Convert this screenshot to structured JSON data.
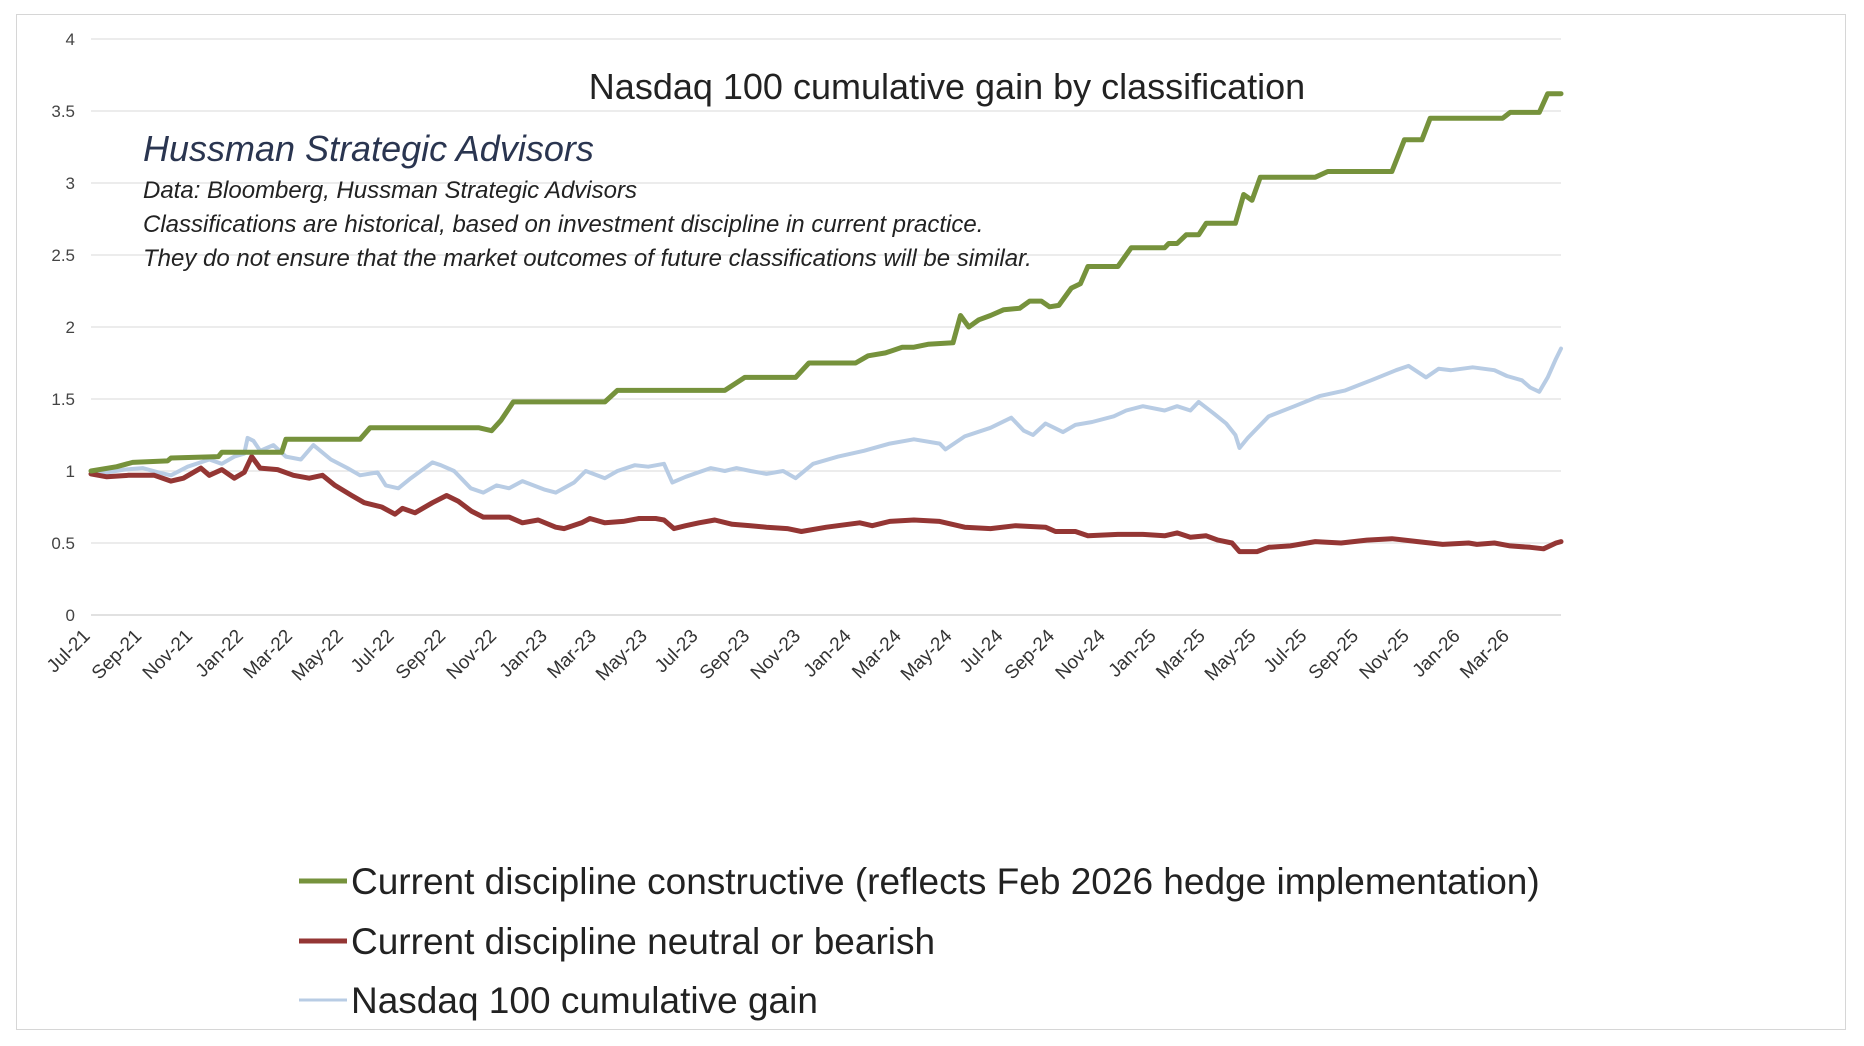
{
  "chart_data": {
    "type": "line",
    "title": "Nasdaq 100  cumulative gain by classification",
    "notes": {
      "brand": "Hussman Strategic Advisors",
      "lines": [
        "Data: Bloomberg, Hussman Strategic Advisors",
        "Classifications are historical,  based on investment discipline in current practice.",
        "They do not ensure that the market outcomes of future classifications will be similar."
      ]
    },
    "y_axis": {
      "range": [
        0,
        4
      ],
      "ticks": [
        "0",
        "0.5",
        "1",
        "1.5",
        "2",
        "2.5",
        "3",
        "3.5",
        "4"
      ],
      "grid": true
    },
    "x_axis": {
      "range": [
        "2021-07",
        "2026-05"
      ],
      "tick_labels": [
        "Jul-21",
        "Sep-21",
        "Nov-21",
        "Jan-22",
        "Mar-22",
        "May-22",
        "Jul-22",
        "Sep-22",
        "Nov-22",
        "Jan-23",
        "Mar-23",
        "May-23",
        "Jul-23",
        "Sep-23",
        "Nov-23",
        "Jan-24",
        "Mar-24",
        "May-24",
        "Jul-24",
        "Sep-24",
        "Nov-24",
        "Jan-25",
        "Mar-25",
        "May-25",
        "Jul-25",
        "Sep-25",
        "Nov-25",
        "Jan-26",
        "Mar-26"
      ]
    },
    "legend_position": "bottom",
    "series": [
      {
        "name": "Current discipline constructive (reflects Feb 2026 hedge implementation)",
        "color": "#76923c",
        "points": [
          [
            "2021-07-01",
            1.0
          ],
          [
            "2021-08-01",
            1.03
          ],
          [
            "2021-08-20",
            1.06
          ],
          [
            "2021-10-01",
            1.07
          ],
          [
            "2021-10-05",
            1.09
          ],
          [
            "2021-12-01",
            1.1
          ],
          [
            "2021-12-05",
            1.13
          ],
          [
            "2022-02-15",
            1.13
          ],
          [
            "2022-02-20",
            1.22
          ],
          [
            "2022-05-20",
            1.22
          ],
          [
            "2022-06-01",
            1.3
          ],
          [
            "2022-10-10",
            1.3
          ],
          [
            "2022-10-25",
            1.28
          ],
          [
            "2022-11-05",
            1.35
          ],
          [
            "2022-11-20",
            1.48
          ],
          [
            "2023-03-10",
            1.48
          ],
          [
            "2023-03-25",
            1.56
          ],
          [
            "2023-08-01",
            1.56
          ],
          [
            "2023-08-25",
            1.65
          ],
          [
            "2023-10-25",
            1.65
          ],
          [
            "2023-11-10",
            1.75
          ],
          [
            "2024-01-05",
            1.75
          ],
          [
            "2024-01-20",
            1.8
          ],
          [
            "2024-02-10",
            1.82
          ],
          [
            "2024-03-01",
            1.86
          ],
          [
            "2024-03-15",
            1.86
          ],
          [
            "2024-04-01",
            1.88
          ],
          [
            "2024-05-01",
            1.89
          ],
          [
            "2024-05-10",
            2.08
          ],
          [
            "2024-05-20",
            2.0
          ],
          [
            "2024-06-01",
            2.05
          ],
          [
            "2024-06-15",
            2.08
          ],
          [
            "2024-07-01",
            2.12
          ],
          [
            "2024-07-20",
            2.13
          ],
          [
            "2024-08-01",
            2.18
          ],
          [
            "2024-08-15",
            2.18
          ],
          [
            "2024-08-25",
            2.14
          ],
          [
            "2024-09-05",
            2.15
          ],
          [
            "2024-09-20",
            2.27
          ],
          [
            "2024-10-01",
            2.3
          ],
          [
            "2024-10-10",
            2.42
          ],
          [
            "2024-11-15",
            2.42
          ],
          [
            "2024-12-01",
            2.55
          ],
          [
            "2025-01-10",
            2.55
          ],
          [
            "2025-01-15",
            2.58
          ],
          [
            "2025-01-25",
            2.58
          ],
          [
            "2025-02-05",
            2.64
          ],
          [
            "2025-02-20",
            2.64
          ],
          [
            "2025-03-01",
            2.72
          ],
          [
            "2025-04-05",
            2.72
          ],
          [
            "2025-04-15",
            2.92
          ],
          [
            "2025-04-25",
            2.88
          ],
          [
            "2025-05-05",
            3.04
          ],
          [
            "2025-07-10",
            3.04
          ],
          [
            "2025-07-25",
            3.08
          ],
          [
            "2025-10-10",
            3.08
          ],
          [
            "2025-10-25",
            3.3
          ],
          [
            "2025-11-15",
            3.3
          ],
          [
            "2025-11-25",
            3.45
          ],
          [
            "2026-02-20",
            3.45
          ],
          [
            "2026-03-01",
            3.49
          ],
          [
            "2026-04-05",
            3.49
          ],
          [
            "2026-04-15",
            3.62
          ],
          [
            "2026-05-01",
            3.62
          ]
        ]
      },
      {
        "name": "Current discipline neutral or bearish",
        "color": "#943634",
        "points": [
          [
            "2021-07-01",
            0.98
          ],
          [
            "2021-07-20",
            0.96
          ],
          [
            "2021-08-15",
            0.97
          ],
          [
            "2021-09-15",
            0.97
          ],
          [
            "2021-10-05",
            0.93
          ],
          [
            "2021-10-20",
            0.95
          ],
          [
            "2021-11-10",
            1.02
          ],
          [
            "2021-11-20",
            0.97
          ],
          [
            "2021-12-05",
            1.01
          ],
          [
            "2021-12-20",
            0.95
          ],
          [
            "2022-01-01",
            0.99
          ],
          [
            "2022-01-10",
            1.1
          ],
          [
            "2022-01-20",
            1.02
          ],
          [
            "2022-02-10",
            1.01
          ],
          [
            "2022-03-01",
            0.97
          ],
          [
            "2022-03-20",
            0.95
          ],
          [
            "2022-04-05",
            0.97
          ],
          [
            "2022-04-20",
            0.9
          ],
          [
            "2022-05-10",
            0.83
          ],
          [
            "2022-05-25",
            0.78
          ],
          [
            "2022-06-15",
            0.75
          ],
          [
            "2022-07-01",
            0.7
          ],
          [
            "2022-07-10",
            0.74
          ],
          [
            "2022-07-25",
            0.71
          ],
          [
            "2022-08-15",
            0.78
          ],
          [
            "2022-09-01",
            0.83
          ],
          [
            "2022-09-15",
            0.79
          ],
          [
            "2022-10-01",
            0.72
          ],
          [
            "2022-10-15",
            0.68
          ],
          [
            "2022-11-15",
            0.68
          ],
          [
            "2022-12-01",
            0.64
          ],
          [
            "2022-12-20",
            0.66
          ],
          [
            "2023-01-10",
            0.61
          ],
          [
            "2023-01-20",
            0.6
          ],
          [
            "2023-02-10",
            0.64
          ],
          [
            "2023-02-20",
            0.67
          ],
          [
            "2023-03-10",
            0.64
          ],
          [
            "2023-04-01",
            0.65
          ],
          [
            "2023-04-20",
            0.67
          ],
          [
            "2023-05-10",
            0.67
          ],
          [
            "2023-05-20",
            0.66
          ],
          [
            "2023-06-01",
            0.6
          ],
          [
            "2023-06-15",
            0.62
          ],
          [
            "2023-07-01",
            0.64
          ],
          [
            "2023-07-20",
            0.66
          ],
          [
            "2023-08-10",
            0.63
          ],
          [
            "2023-09-01",
            0.62
          ],
          [
            "2023-09-20",
            0.61
          ],
          [
            "2023-10-15",
            0.6
          ],
          [
            "2023-11-01",
            0.58
          ],
          [
            "2023-12-01",
            0.61
          ],
          [
            "2024-01-10",
            0.64
          ],
          [
            "2024-01-25",
            0.62
          ],
          [
            "2024-02-15",
            0.65
          ],
          [
            "2024-03-15",
            0.66
          ],
          [
            "2024-04-15",
            0.65
          ],
          [
            "2024-05-15",
            0.61
          ],
          [
            "2024-06-15",
            0.6
          ],
          [
            "2024-07-15",
            0.62
          ],
          [
            "2024-08-20",
            0.61
          ],
          [
            "2024-09-01",
            0.58
          ],
          [
            "2024-09-25",
            0.58
          ],
          [
            "2024-10-10",
            0.55
          ],
          [
            "2024-11-15",
            0.56
          ],
          [
            "2024-12-15",
            0.56
          ],
          [
            "2025-01-10",
            0.55
          ],
          [
            "2025-01-25",
            0.57
          ],
          [
            "2025-02-10",
            0.54
          ],
          [
            "2025-03-01",
            0.55
          ],
          [
            "2025-03-15",
            0.52
          ],
          [
            "2025-04-01",
            0.5
          ],
          [
            "2025-04-10",
            0.44
          ],
          [
            "2025-05-01",
            0.44
          ],
          [
            "2025-05-15",
            0.47
          ],
          [
            "2025-06-10",
            0.48
          ],
          [
            "2025-07-10",
            0.51
          ],
          [
            "2025-08-10",
            0.5
          ],
          [
            "2025-09-10",
            0.52
          ],
          [
            "2025-10-10",
            0.53
          ],
          [
            "2025-11-10",
            0.51
          ],
          [
            "2025-12-10",
            0.49
          ],
          [
            "2026-01-10",
            0.5
          ],
          [
            "2026-01-20",
            0.49
          ],
          [
            "2026-02-10",
            0.5
          ],
          [
            "2026-03-01",
            0.48
          ],
          [
            "2026-03-25",
            0.47
          ],
          [
            "2026-04-10",
            0.46
          ],
          [
            "2026-04-25",
            0.5
          ],
          [
            "2026-05-01",
            0.51
          ]
        ]
      },
      {
        "name": "Nasdaq 100 cumulative gain",
        "color": "#b8cce4",
        "points": [
          [
            "2021-07-01",
            1.0
          ],
          [
            "2021-07-20",
            0.99
          ],
          [
            "2021-08-10",
            1.01
          ],
          [
            "2021-09-01",
            1.02
          ],
          [
            "2021-09-20",
            0.99
          ],
          [
            "2021-10-05",
            0.97
          ],
          [
            "2021-10-25",
            1.03
          ],
          [
            "2021-11-20",
            1.08
          ],
          [
            "2021-12-05",
            1.05
          ],
          [
            "2021-12-20",
            1.1
          ],
          [
            "2022-01-01",
            1.12
          ],
          [
            "2022-01-05",
            1.23
          ],
          [
            "2022-01-12",
            1.21
          ],
          [
            "2022-01-20",
            1.14
          ],
          [
            "2022-02-05",
            1.18
          ],
          [
            "2022-02-20",
            1.1
          ],
          [
            "2022-03-10",
            1.08
          ],
          [
            "2022-03-25",
            1.18
          ],
          [
            "2022-04-15",
            1.08
          ],
          [
            "2022-05-05",
            1.02
          ],
          [
            "2022-05-20",
            0.97
          ],
          [
            "2022-06-10",
            0.99
          ],
          [
            "2022-06-20",
            0.9
          ],
          [
            "2022-07-05",
            0.88
          ],
          [
            "2022-07-20",
            0.95
          ],
          [
            "2022-08-15",
            1.06
          ],
          [
            "2022-08-25",
            1.04
          ],
          [
            "2022-09-10",
            1.0
          ],
          [
            "2022-09-30",
            0.88
          ],
          [
            "2022-10-15",
            0.85
          ],
          [
            "2022-10-31",
            0.9
          ],
          [
            "2022-11-15",
            0.88
          ],
          [
            "2022-12-01",
            0.93
          ],
          [
            "2022-12-28",
            0.87
          ],
          [
            "2023-01-10",
            0.85
          ],
          [
            "2023-02-01",
            0.92
          ],
          [
            "2023-02-15",
            1.0
          ],
          [
            "2023-03-10",
            0.95
          ],
          [
            "2023-03-25",
            1.0
          ],
          [
            "2023-04-15",
            1.04
          ],
          [
            "2023-05-01",
            1.03
          ],
          [
            "2023-05-20",
            1.05
          ],
          [
            "2023-05-30",
            0.92
          ],
          [
            "2023-06-15",
            0.96
          ],
          [
            "2023-07-15",
            1.02
          ],
          [
            "2023-08-01",
            1.0
          ],
          [
            "2023-08-15",
            1.02
          ],
          [
            "2023-09-01",
            1.0
          ],
          [
            "2023-09-20",
            0.98
          ],
          [
            "2023-10-10",
            1.0
          ],
          [
            "2023-10-25",
            0.95
          ],
          [
            "2023-11-15",
            1.05
          ],
          [
            "2023-12-15",
            1.1
          ],
          [
            "2024-01-15",
            1.14
          ],
          [
            "2024-02-15",
            1.19
          ],
          [
            "2024-03-15",
            1.22
          ],
          [
            "2024-04-15",
            1.19
          ],
          [
            "2024-04-22",
            1.15
          ],
          [
            "2024-05-15",
            1.24
          ],
          [
            "2024-06-15",
            1.3
          ],
          [
            "2024-07-10",
            1.37
          ],
          [
            "2024-07-25",
            1.28
          ],
          [
            "2024-08-05",
            1.25
          ],
          [
            "2024-08-20",
            1.33
          ],
          [
            "2024-09-10",
            1.27
          ],
          [
            "2024-09-25",
            1.32
          ],
          [
            "2024-10-15",
            1.34
          ],
          [
            "2024-11-10",
            1.38
          ],
          [
            "2024-11-25",
            1.42
          ],
          [
            "2024-12-15",
            1.45
          ],
          [
            "2025-01-10",
            1.42
          ],
          [
            "2025-01-25",
            1.45
          ],
          [
            "2025-02-10",
            1.42
          ],
          [
            "2025-02-20",
            1.48
          ],
          [
            "2025-03-10",
            1.4
          ],
          [
            "2025-03-25",
            1.33
          ],
          [
            "2025-04-05",
            1.25
          ],
          [
            "2025-04-10",
            1.16
          ],
          [
            "2025-04-20",
            1.23
          ],
          [
            "2025-05-15",
            1.38
          ],
          [
            "2025-06-15",
            1.45
          ],
          [
            "2025-07-15",
            1.52
          ],
          [
            "2025-08-15",
            1.56
          ],
          [
            "2025-09-15",
            1.63
          ],
          [
            "2025-10-15",
            1.7
          ],
          [
            "2025-10-30",
            1.73
          ],
          [
            "2025-11-20",
            1.65
          ],
          [
            "2025-12-05",
            1.71
          ],
          [
            "2025-12-20",
            1.7
          ],
          [
            "2026-01-15",
            1.72
          ],
          [
            "2026-02-10",
            1.7
          ],
          [
            "2026-02-25",
            1.66
          ],
          [
            "2026-03-15",
            1.63
          ],
          [
            "2026-03-25",
            1.58
          ],
          [
            "2026-04-05",
            1.55
          ],
          [
            "2026-04-15",
            1.65
          ],
          [
            "2026-04-25",
            1.78
          ],
          [
            "2026-05-01",
            1.85
          ]
        ]
      }
    ]
  }
}
